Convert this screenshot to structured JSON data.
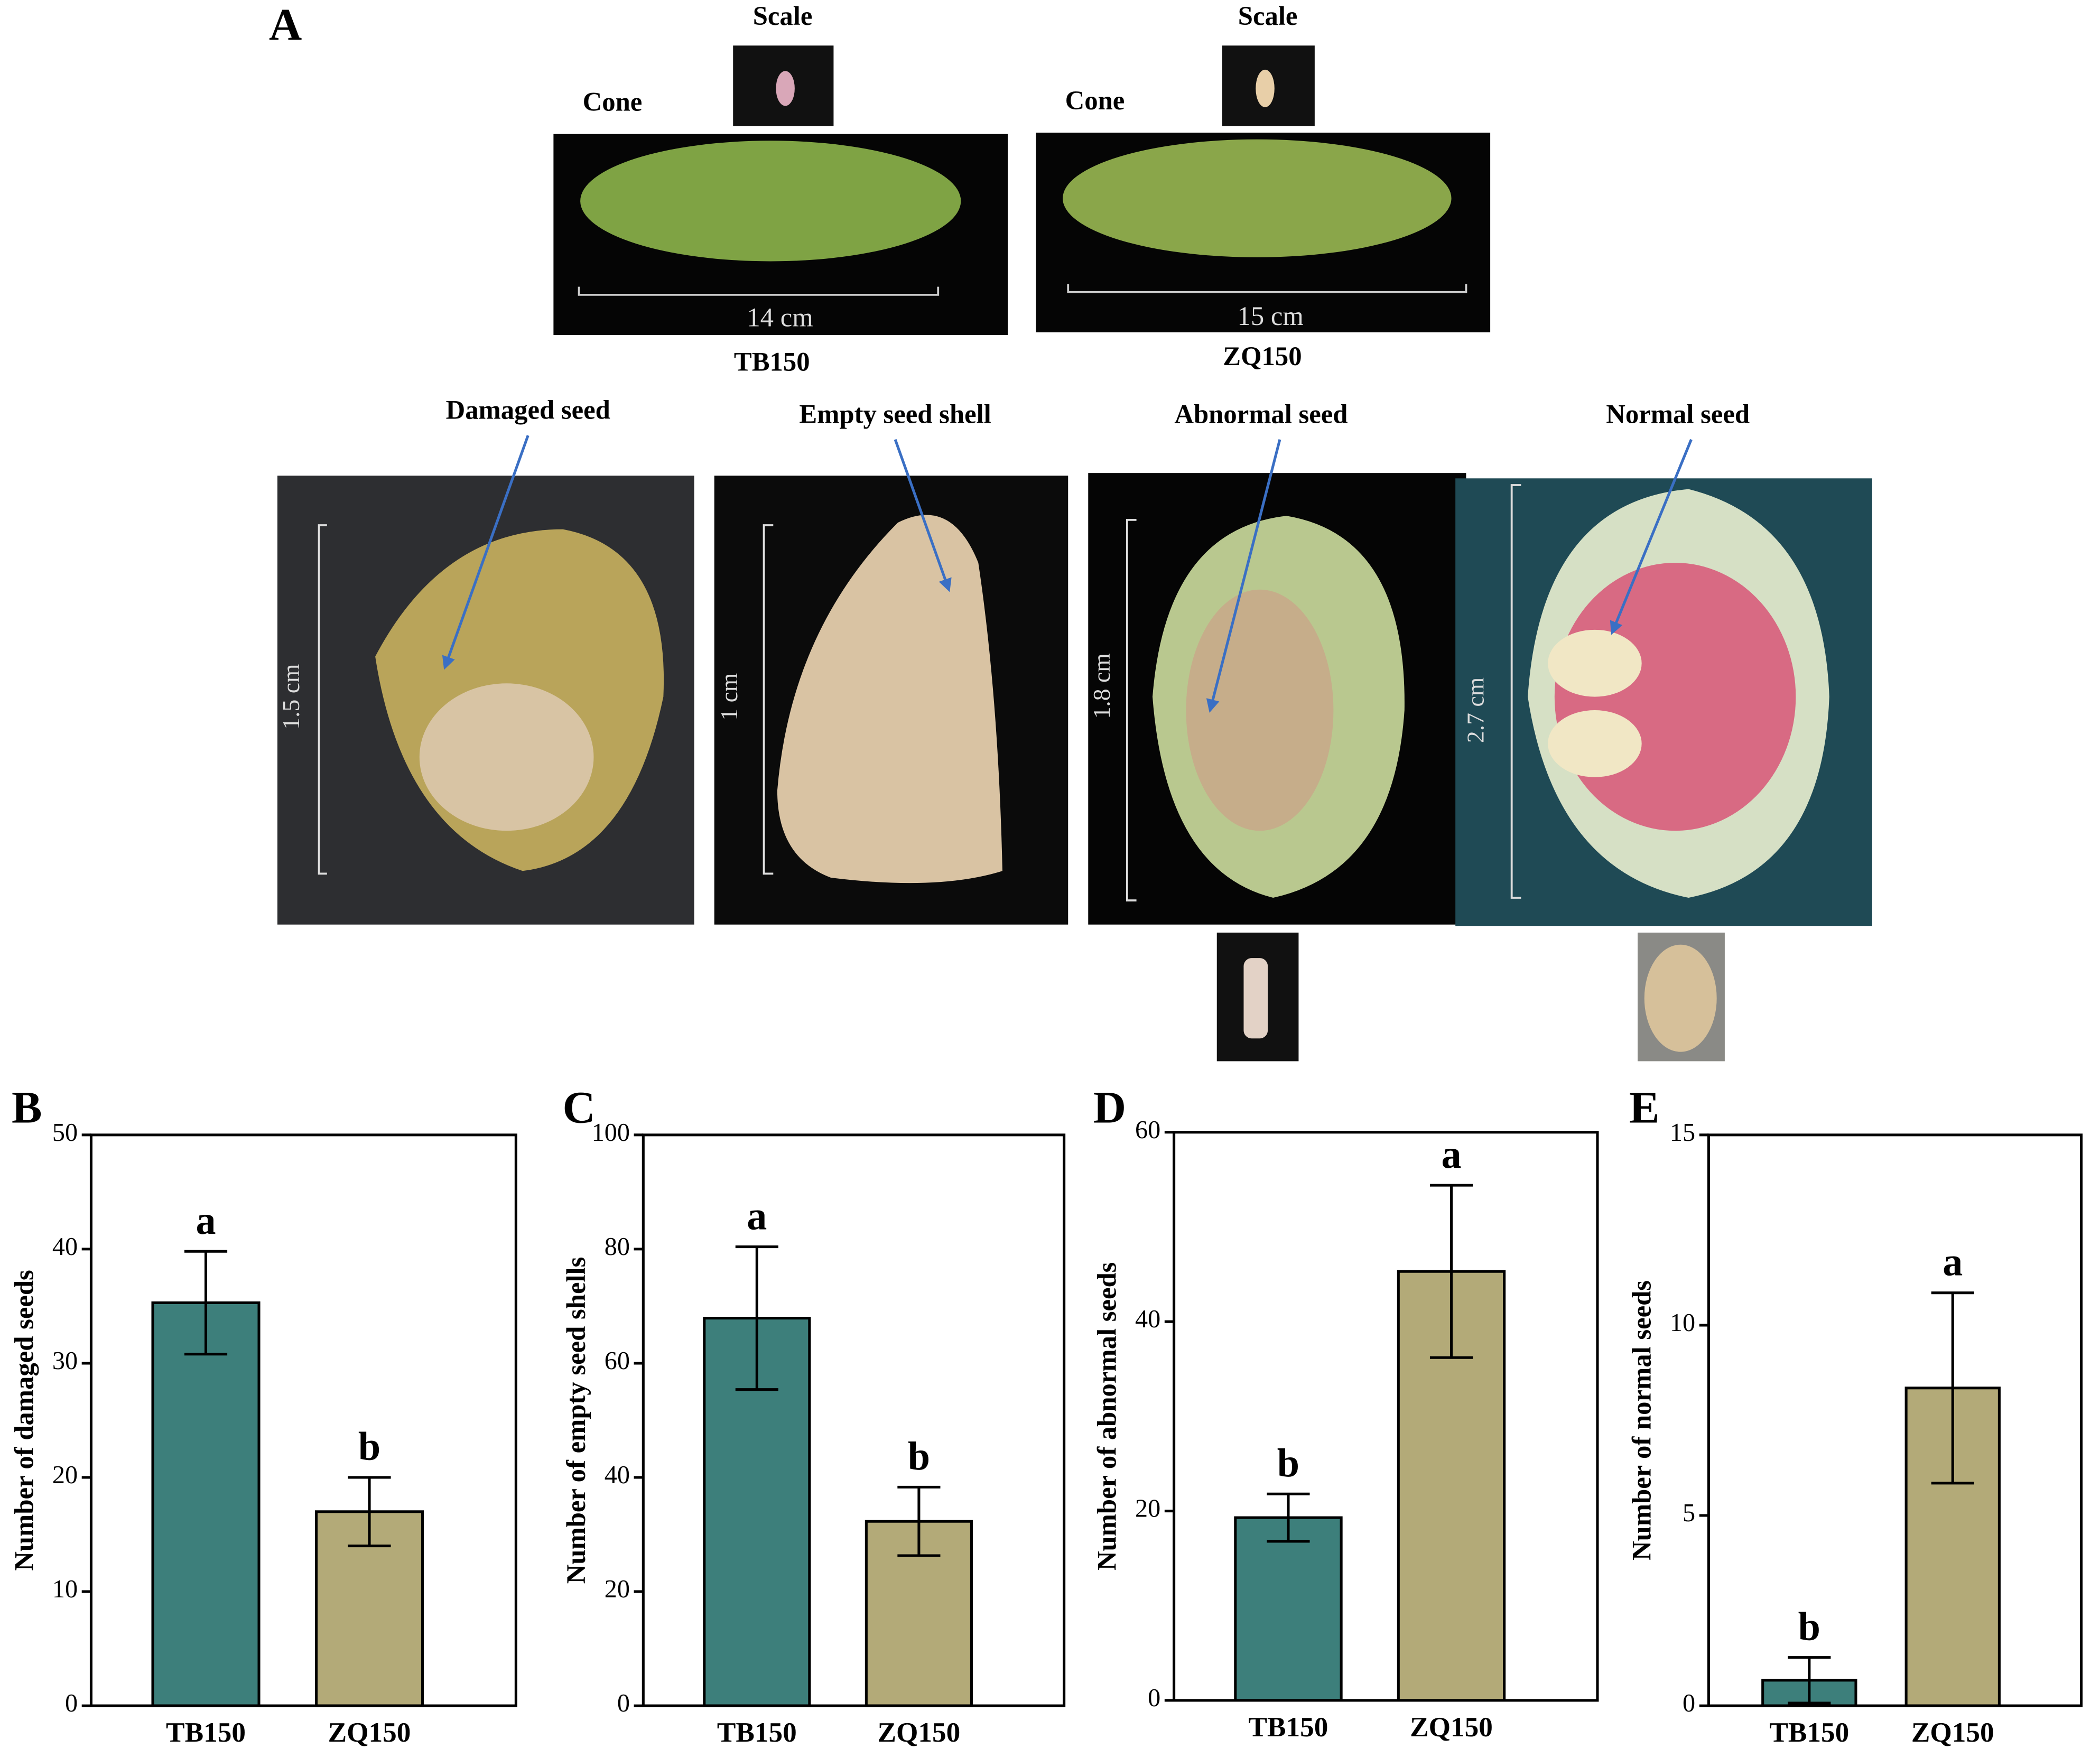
{
  "panel_a": {
    "label": "A",
    "cones": [
      {
        "scale_label": "Scale",
        "cone_label": "Cone",
        "length": "14 cm",
        "name": "TB150"
      },
      {
        "scale_label": "Scale",
        "cone_label": "Cone",
        "length": "15 cm",
        "name": "ZQ150"
      }
    ],
    "seeds": [
      {
        "label": "Damaged seed",
        "size": "1.5 cm"
      },
      {
        "label": "Empty seed shell",
        "size": "1 cm"
      },
      {
        "label": "Abnormal seed",
        "size": "1.8 cm"
      },
      {
        "label": "Normal seed",
        "size": "2.7 cm"
      }
    ]
  },
  "chart_data": [
    {
      "type": "bar",
      "panel": "B",
      "ylabel": "Number of damaged seeds",
      "categories": [
        "TB150",
        "ZQ150"
      ],
      "values": [
        35.3,
        17.0
      ],
      "errors": [
        4.5,
        3.0
      ],
      "annotations": [
        "a",
        "b"
      ],
      "colors": [
        "#3d7f7b",
        "#b3aa78"
      ],
      "ylim": [
        0,
        50
      ],
      "yticks": [
        0,
        10,
        20,
        30,
        40,
        50
      ]
    },
    {
      "type": "bar",
      "panel": "C",
      "ylabel": "Number of empty seed shells",
      "categories": [
        "TB150",
        "ZQ150"
      ],
      "values": [
        67.9,
        32.3
      ],
      "errors": [
        12.5,
        6.0
      ],
      "annotations": [
        "a",
        "b"
      ],
      "colors": [
        "#3d7f7b",
        "#b3aa78"
      ],
      "ylim": [
        0,
        100
      ],
      "yticks": [
        0,
        20,
        40,
        60,
        80,
        100
      ]
    },
    {
      "type": "bar",
      "panel": "D",
      "ylabel": "Number of abnormal seeds",
      "categories": [
        "TB150",
        "ZQ150"
      ],
      "values": [
        19.3,
        45.3
      ],
      "errors": [
        2.5,
        9.1
      ],
      "annotations": [
        "b",
        "a"
      ],
      "colors": [
        "#3d7f7b",
        "#b3aa78"
      ],
      "ylim": [
        0,
        60
      ],
      "yticks": [
        0,
        20,
        40,
        60
      ]
    },
    {
      "type": "bar",
      "panel": "E",
      "ylabel": "Number of normal seeds",
      "categories": [
        "TB150",
        "ZQ150"
      ],
      "values": [
        0.67,
        8.35
      ],
      "errors": [
        0.6,
        2.5
      ],
      "annotations": [
        "b",
        "a"
      ],
      "colors": [
        "#3d7f7b",
        "#b3aa78"
      ],
      "ylim": [
        0,
        15
      ],
      "yticks": [
        0,
        5,
        10,
        15
      ]
    }
  ]
}
